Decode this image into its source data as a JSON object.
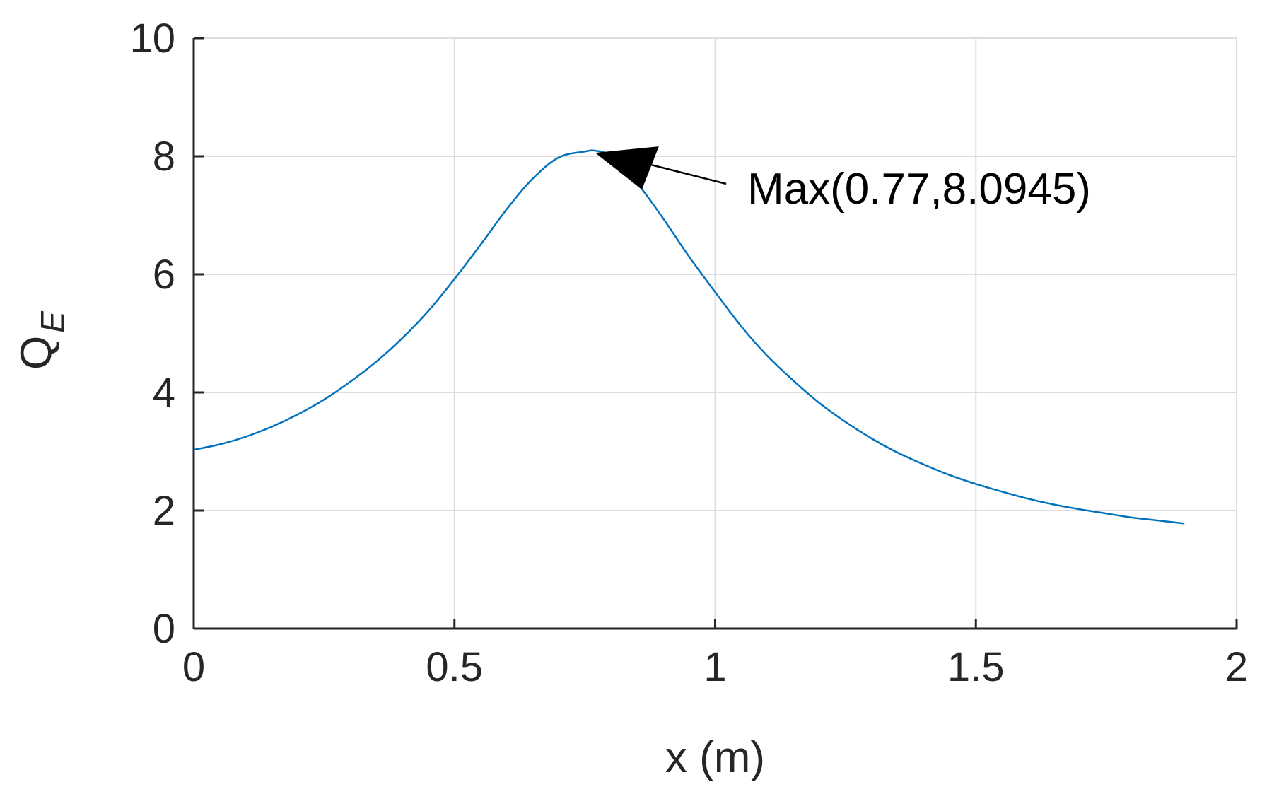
{
  "chart_data": {
    "type": "line",
    "title": "",
    "xlabel": "x (m)",
    "ylabel": {
      "main": "Q",
      "subscript": "E"
    },
    "xlim": [
      0,
      2
    ],
    "ylim": [
      0,
      10
    ],
    "xticks": [
      0,
      0.5,
      1,
      1.5,
      2
    ],
    "xtick_labels": [
      "0",
      "0.5",
      "1",
      "1.5",
      "2"
    ],
    "yticks": [
      0,
      2,
      4,
      6,
      8,
      10
    ],
    "ytick_labels": [
      "0",
      "2",
      "4",
      "6",
      "8",
      "10"
    ],
    "grid": true,
    "legend": "none",
    "series": [
      {
        "color": "#0072BD",
        "x": [
          0.0,
          0.05,
          0.1,
          0.15,
          0.2,
          0.25,
          0.3,
          0.35,
          0.4,
          0.45,
          0.5,
          0.55,
          0.6,
          0.65,
          0.7,
          0.75,
          0.77,
          0.8,
          0.85,
          0.9,
          0.95,
          1.0,
          1.05,
          1.1,
          1.15,
          1.2,
          1.25,
          1.3,
          1.35,
          1.4,
          1.45,
          1.5,
          1.55,
          1.6,
          1.65,
          1.7,
          1.75,
          1.8,
          1.85,
          1.9
        ],
        "y": [
          3.03,
          3.12,
          3.25,
          3.42,
          3.63,
          3.88,
          4.18,
          4.52,
          4.92,
          5.38,
          5.92,
          6.5,
          7.1,
          7.62,
          7.98,
          8.08,
          8.0945,
          8.0,
          7.55,
          6.95,
          6.3,
          5.7,
          5.12,
          4.62,
          4.2,
          3.82,
          3.5,
          3.22,
          2.98,
          2.78,
          2.6,
          2.45,
          2.32,
          2.2,
          2.1,
          2.02,
          1.95,
          1.88,
          1.83,
          1.78
        ]
      }
    ],
    "annotations": [
      {
        "text": "Max(0.77,8.0945)",
        "x": 0.77,
        "y": 8.0945,
        "arrow": true
      }
    ]
  }
}
